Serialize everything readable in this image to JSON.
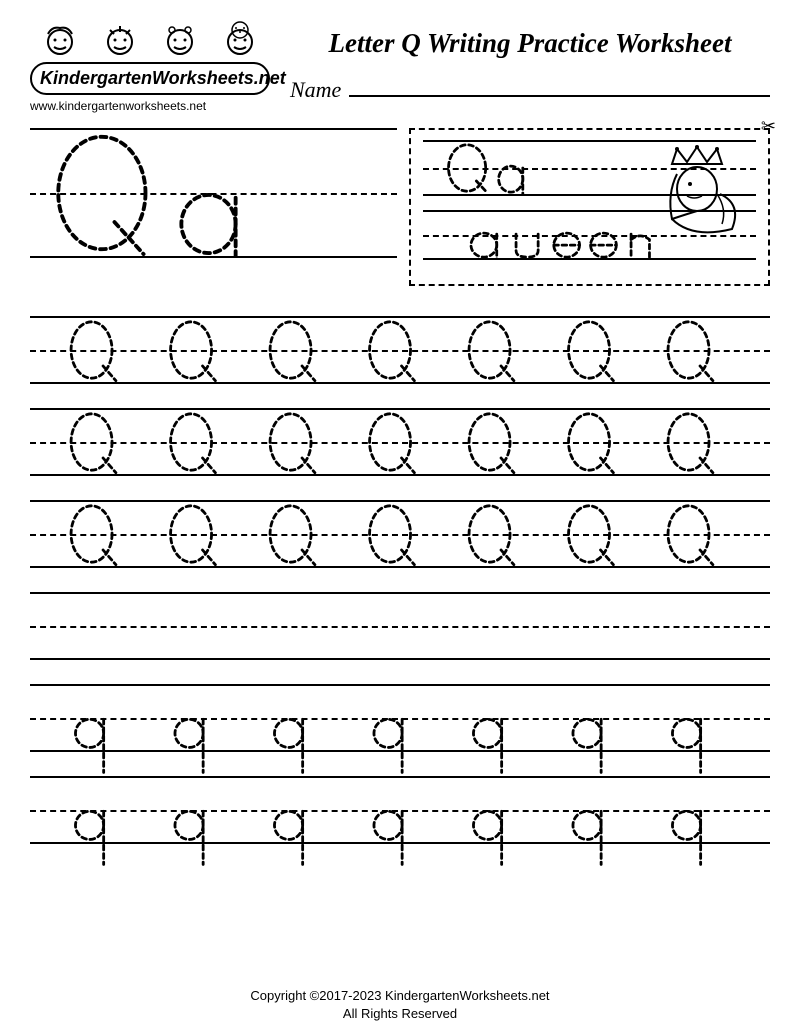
{
  "header": {
    "logo_text": "KindergartenWorksheets.net",
    "logo_url": "www.kindergartenworksheets.net",
    "title": "Letter Q Writing Practice Worksheet",
    "name_label": "Name"
  },
  "demo": {
    "upper_letter": "Q",
    "lower_letter": "q",
    "word": "queen",
    "scissors_icon": "✂"
  },
  "practice": {
    "upper_rows": 3,
    "blank_rows": 1,
    "lower_rows": 2,
    "letters_per_row": 7,
    "upper_letter": "Q",
    "lower_letter": "q"
  },
  "styling": {
    "page_bg": "#ffffff",
    "ink": "#000000",
    "line_weight": 2,
    "dash_pattern": "6 5",
    "title_fontsize": 27,
    "name_fontsize": 22,
    "practice_line_height": 68,
    "demo_line_height": 78,
    "font_family": "Georgia, serif"
  },
  "footer": {
    "copyright": "Copyright ©2017-2023 KindergartenWorksheets.net",
    "rights": "All Rights Reserved"
  }
}
